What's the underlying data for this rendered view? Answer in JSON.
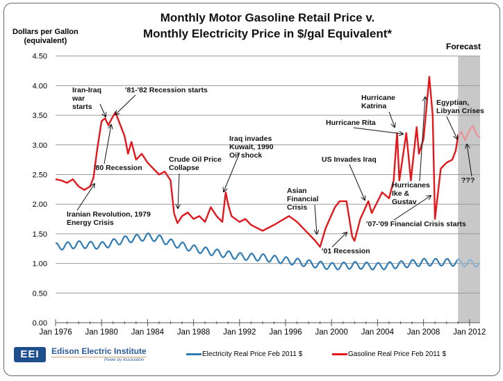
{
  "chart_data": {
    "type": "line",
    "title": [
      "Monthly Motor Gasoline Retail Price v.",
      "Monthly Electricity Price in $/gal Equivalent*"
    ],
    "ylabel": [
      "Dollars per Gallon",
      "(equivalent)"
    ],
    "ylim": [
      0,
      4.5
    ],
    "yticks": [
      "0.00",
      "0.50",
      "1.00",
      "1.50",
      "2.00",
      "2.50",
      "3.00",
      "3.50",
      "4.00",
      "4.50"
    ],
    "xlim": [
      1976,
      2012.9
    ],
    "xticks": [
      "Jan 1976",
      "Jan 1980",
      "Jan 1984",
      "Jan 1988",
      "Jan 1992",
      "Jan 1996",
      "Jan 2000",
      "Jan 2004",
      "Jan 2008",
      "Jan 2012"
    ],
    "grid": true,
    "forecast": {
      "label": "Forecast",
      "start": 2011.0,
      "end": 2012.9
    },
    "series": [
      {
        "name": "Electricity Real Price Feb 2011 $",
        "color": "#2e7bb5",
        "seasonal_amplitude": 0.06,
        "points": [
          [
            1976,
            1.28
          ],
          [
            1978,
            1.32
          ],
          [
            1980,
            1.3
          ],
          [
            1982,
            1.4
          ],
          [
            1984,
            1.45
          ],
          [
            1985,
            1.42
          ],
          [
            1986,
            1.35
          ],
          [
            1988,
            1.25
          ],
          [
            1990,
            1.18
          ],
          [
            1992,
            1.12
          ],
          [
            1994,
            1.1
          ],
          [
            1996,
            1.05
          ],
          [
            1998,
            1.0
          ],
          [
            2000,
            0.95
          ],
          [
            2002,
            0.97
          ],
          [
            2004,
            0.95
          ],
          [
            2006,
            0.98
          ],
          [
            2008,
            1.02
          ],
          [
            2010,
            1.02
          ],
          [
            2012.9,
            1.0
          ]
        ]
      },
      {
        "name": "Gasoline Real Price Feb 2011 $",
        "color": "#e3171b",
        "forecast_color": "#e8959a",
        "points": [
          [
            1976,
            2.42
          ],
          [
            1976.5,
            2.4
          ],
          [
            1977,
            2.36
          ],
          [
            1977.5,
            2.42
          ],
          [
            1978,
            2.3
          ],
          [
            1978.5,
            2.24
          ],
          [
            1979,
            2.3
          ],
          [
            1979.3,
            2.45
          ],
          [
            1979.6,
            2.9
          ],
          [
            1980,
            3.4
          ],
          [
            1980.3,
            3.45
          ],
          [
            1980.6,
            3.33
          ],
          [
            1980.9,
            3.45
          ],
          [
            1981.2,
            3.55
          ],
          [
            1981.6,
            3.35
          ],
          [
            1982,
            3.15
          ],
          [
            1982.3,
            2.85
          ],
          [
            1982.6,
            3.05
          ],
          [
            1983,
            2.75
          ],
          [
            1983.5,
            2.85
          ],
          [
            1984,
            2.7
          ],
          [
            1984.5,
            2.6
          ],
          [
            1985,
            2.5
          ],
          [
            1985.5,
            2.55
          ],
          [
            1986,
            2.4
          ],
          [
            1986.3,
            1.85
          ],
          [
            1986.6,
            1.68
          ],
          [
            1987,
            1.8
          ],
          [
            1987.5,
            1.86
          ],
          [
            1988,
            1.75
          ],
          [
            1988.5,
            1.8
          ],
          [
            1989,
            1.7
          ],
          [
            1989.5,
            1.95
          ],
          [
            1990,
            1.8
          ],
          [
            1990.5,
            1.7
          ],
          [
            1990.8,
            2.2
          ],
          [
            1991,
            2.0
          ],
          [
            1991.3,
            1.8
          ],
          [
            1992,
            1.7
          ],
          [
            1992.5,
            1.75
          ],
          [
            1993,
            1.65
          ],
          [
            1994,
            1.55
          ],
          [
            1995,
            1.65
          ],
          [
            1996.3,
            1.8
          ],
          [
            1997,
            1.7
          ],
          [
            1998,
            1.5
          ],
          [
            1998.5,
            1.4
          ],
          [
            1999,
            1.28
          ],
          [
            1999.5,
            1.6
          ],
          [
            2000.3,
            1.95
          ],
          [
            2000.7,
            2.05
          ],
          [
            2001.3,
            2.05
          ],
          [
            2001.8,
            1.45
          ],
          [
            2002,
            1.38
          ],
          [
            2002.5,
            1.75
          ],
          [
            2003.2,
            2.05
          ],
          [
            2003.5,
            1.85
          ],
          [
            2004.4,
            2.2
          ],
          [
            2005,
            2.1
          ],
          [
            2005.4,
            2.4
          ],
          [
            2005.7,
            3.2
          ],
          [
            2005.9,
            2.4
          ],
          [
            2006.5,
            3.2
          ],
          [
            2006.9,
            2.4
          ],
          [
            2007.4,
            3.3
          ],
          [
            2007.6,
            2.85
          ],
          [
            2008,
            3.1
          ],
          [
            2008.5,
            4.15
          ],
          [
            2008.8,
            3.5
          ],
          [
            2009,
            1.75
          ],
          [
            2009.5,
            2.6
          ],
          [
            2010,
            2.7
          ],
          [
            2010.5,
            2.75
          ],
          [
            2010.8,
            2.9
          ],
          [
            2011.0,
            3.15
          ]
        ],
        "forecast_points": [
          [
            2011.0,
            3.15
          ],
          [
            2011.3,
            3.22
          ],
          [
            2011.6,
            3.08
          ],
          [
            2012.0,
            3.25
          ],
          [
            2012.3,
            3.32
          ],
          [
            2012.6,
            3.18
          ],
          [
            2012.9,
            3.12
          ]
        ]
      }
    ],
    "annotations": [
      {
        "id": "iran-iraq",
        "text": "Iran-Iraq war starts"
      },
      {
        "id": "recession-81",
        "text": "'81-'82 Recession starts"
      },
      {
        "id": "recession-80",
        "text": "'80 Recession"
      },
      {
        "id": "iranian-revolution",
        "text": "Iranian Revolution, 1979 Energy Crisis"
      },
      {
        "id": "oil-collapse",
        "text": "Crude Oil Price Collapse"
      },
      {
        "id": "kuwait",
        "text": "Iraq invades Kuwait, 1990 Oil shock"
      },
      {
        "id": "asian-crisis",
        "text": "Asian Financial Crisis"
      },
      {
        "id": "recession-01",
        "text": "'01 Recession"
      },
      {
        "id": "iraq-invasion",
        "text": "US Invades Iraq"
      },
      {
        "id": "rita",
        "text": "Hurricane Rita"
      },
      {
        "id": "katrina",
        "text": "Hurricane Katrina"
      },
      {
        "id": "ike-gustav",
        "text": "Hurricanes Ike & Gustav"
      },
      {
        "id": "financial-crisis",
        "text": "'07-'09 Financial Crisis starts"
      },
      {
        "id": "egypt-libya",
        "text": "Egyptian, Libyan Crises"
      },
      {
        "id": "unknown",
        "text": "???"
      }
    ]
  },
  "footer": {
    "org": "Edison Electric Institute",
    "logo": "EEI",
    "tagline": "Power by Association"
  }
}
